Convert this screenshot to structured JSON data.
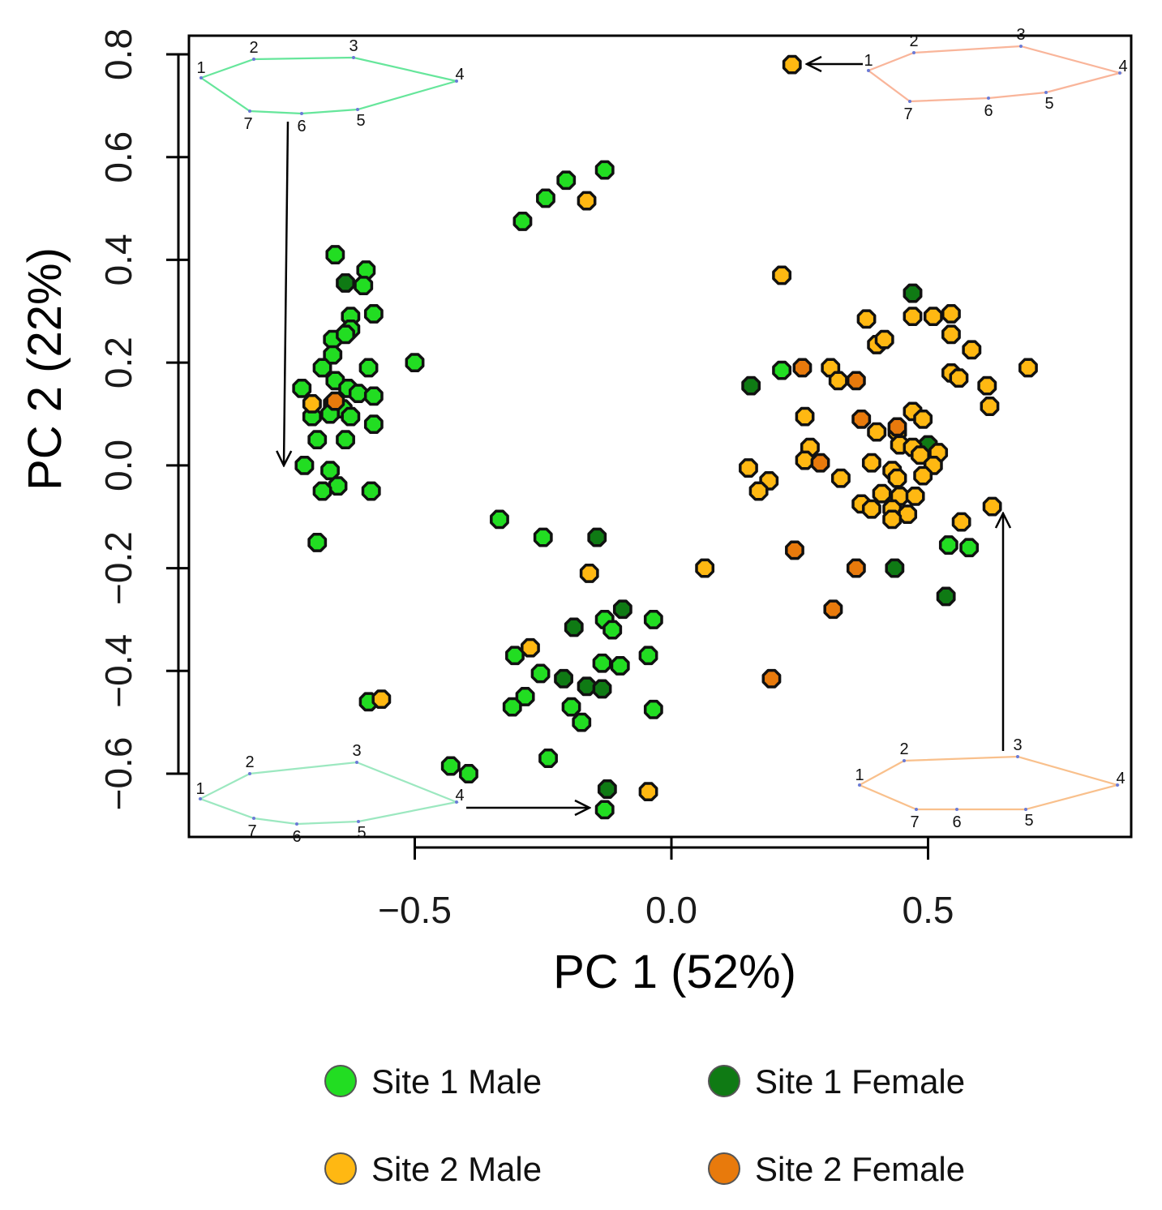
{
  "chart_data": {
    "type": "scatter",
    "xlabel": "PC 1 (52%)",
    "ylabel": "PC 2 (22%)",
    "xlim": [
      -0.94,
      0.9
    ],
    "ylim": [
      -0.72,
      0.83
    ],
    "xticks": [
      -0.5,
      0.0,
      0.5
    ],
    "xtick_labels": [
      "−0.5",
      "0.0",
      "0.5"
    ],
    "yticks": [
      -0.6,
      -0.4,
      -0.2,
      0.0,
      0.2,
      0.4,
      0.6,
      0.8
    ],
    "ytick_labels": [
      "−0.6",
      "−0.4",
      "−0.2",
      "0.0",
      "0.2",
      "0.4",
      "0.6",
      "0.8"
    ],
    "grid": false,
    "legend_position": "bottom",
    "series": [
      {
        "name": "Site 1 Male",
        "color": "#22dd22",
        "points": [
          [
            -0.655,
            0.41
          ],
          [
            -0.595,
            0.38
          ],
          [
            -0.6,
            0.35
          ],
          [
            -0.625,
            0.29
          ],
          [
            -0.58,
            0.295
          ],
          [
            -0.66,
            0.245
          ],
          [
            -0.625,
            0.265
          ],
          [
            -0.635,
            0.255
          ],
          [
            -0.66,
            0.215
          ],
          [
            -0.5,
            0.2
          ],
          [
            -0.68,
            0.19
          ],
          [
            -0.59,
            0.19
          ],
          [
            -0.72,
            0.15
          ],
          [
            -0.655,
            0.165
          ],
          [
            -0.63,
            0.15
          ],
          [
            -0.61,
            0.14
          ],
          [
            -0.58,
            0.135
          ],
          [
            -0.66,
            0.12
          ],
          [
            -0.64,
            0.11
          ],
          [
            -0.7,
            0.095
          ],
          [
            -0.665,
            0.1
          ],
          [
            -0.625,
            0.095
          ],
          [
            -0.58,
            0.08
          ],
          [
            -0.69,
            0.05
          ],
          [
            -0.635,
            0.05
          ],
          [
            -0.715,
            0.0
          ],
          [
            -0.665,
            -0.01
          ],
          [
            -0.65,
            -0.04
          ],
          [
            -0.68,
            -0.05
          ],
          [
            -0.585,
            -0.05
          ],
          [
            -0.69,
            -0.15
          ],
          [
            -0.59,
            -0.46
          ],
          [
            -0.43,
            -0.585
          ],
          [
            -0.395,
            -0.6
          ],
          [
            -0.29,
            0.475
          ],
          [
            -0.245,
            0.52
          ],
          [
            -0.205,
            0.555
          ],
          [
            -0.13,
            0.575
          ],
          [
            -0.335,
            -0.105
          ],
          [
            -0.25,
            -0.14
          ],
          [
            -0.13,
            -0.3
          ],
          [
            -0.115,
            -0.32
          ],
          [
            -0.035,
            -0.3
          ],
          [
            -0.305,
            -0.37
          ],
          [
            -0.255,
            -0.405
          ],
          [
            -0.135,
            -0.385
          ],
          [
            -0.1,
            -0.39
          ],
          [
            -0.045,
            -0.37
          ],
          [
            -0.285,
            -0.45
          ],
          [
            -0.31,
            -0.47
          ],
          [
            -0.195,
            -0.47
          ],
          [
            -0.175,
            -0.5
          ],
          [
            -0.035,
            -0.475
          ],
          [
            -0.24,
            -0.57
          ],
          [
            -0.13,
            -0.67
          ],
          [
            0.215,
            0.185
          ],
          [
            0.54,
            -0.155
          ],
          [
            0.58,
            -0.16
          ]
        ]
      },
      {
        "name": "Site 1 Female",
        "color": "#0f7a14",
        "points": [
          [
            -0.635,
            0.355
          ],
          [
            -0.21,
            -0.415
          ],
          [
            -0.19,
            -0.315
          ],
          [
            -0.095,
            -0.28
          ],
          [
            -0.165,
            -0.43
          ],
          [
            -0.135,
            -0.435
          ],
          [
            -0.145,
            -0.14
          ],
          [
            -0.125,
            -0.63
          ],
          [
            0.155,
            0.155
          ],
          [
            0.47,
            0.335
          ],
          [
            0.5,
            0.04
          ],
          [
            0.435,
            -0.2
          ],
          [
            0.535,
            -0.255
          ]
        ]
      },
      {
        "name": "Site 2 Male",
        "color": "#ffb812",
        "points": [
          [
            -0.7,
            0.12
          ],
          [
            -0.565,
            -0.455
          ],
          [
            -0.165,
            0.515
          ],
          [
            -0.16,
            -0.21
          ],
          [
            -0.275,
            -0.355
          ],
          [
            -0.045,
            -0.635
          ],
          [
            0.065,
            -0.2
          ],
          [
            0.235,
            0.78
          ],
          [
            0.215,
            0.37
          ],
          [
            0.38,
            0.285
          ],
          [
            0.47,
            0.29
          ],
          [
            0.51,
            0.29
          ],
          [
            0.545,
            0.295
          ],
          [
            0.4,
            0.235
          ],
          [
            0.415,
            0.245
          ],
          [
            0.545,
            0.255
          ],
          [
            0.585,
            0.225
          ],
          [
            0.31,
            0.19
          ],
          [
            0.325,
            0.165
          ],
          [
            0.695,
            0.19
          ],
          [
            0.545,
            0.18
          ],
          [
            0.56,
            0.17
          ],
          [
            0.615,
            0.155
          ],
          [
            0.62,
            0.115
          ],
          [
            0.26,
            0.095
          ],
          [
            0.47,
            0.105
          ],
          [
            0.49,
            0.09
          ],
          [
            0.4,
            0.065
          ],
          [
            0.44,
            0.065
          ],
          [
            0.445,
            0.04
          ],
          [
            0.47,
            0.035
          ],
          [
            0.485,
            0.02
          ],
          [
            0.52,
            0.025
          ],
          [
            0.27,
            0.035
          ],
          [
            0.26,
            0.01
          ],
          [
            0.39,
            0.005
          ],
          [
            0.43,
            -0.01
          ],
          [
            0.51,
            0.0
          ],
          [
            0.15,
            -0.005
          ],
          [
            0.19,
            -0.03
          ],
          [
            0.33,
            -0.025
          ],
          [
            0.44,
            -0.025
          ],
          [
            0.49,
            -0.02
          ],
          [
            0.17,
            -0.05
          ],
          [
            0.41,
            -0.055
          ],
          [
            0.445,
            -0.06
          ],
          [
            0.475,
            -0.06
          ],
          [
            0.37,
            -0.075
          ],
          [
            0.39,
            -0.085
          ],
          [
            0.43,
            -0.085
          ],
          [
            0.46,
            -0.095
          ],
          [
            0.43,
            -0.105
          ],
          [
            0.565,
            -0.11
          ],
          [
            0.625,
            -0.08
          ]
        ]
      },
      {
        "name": "Site 2 Female",
        "color": "#e87a0c",
        "points": [
          [
            -0.655,
            0.125
          ],
          [
            0.255,
            0.19
          ],
          [
            0.36,
            0.165
          ],
          [
            0.37,
            0.09
          ],
          [
            0.44,
            0.075
          ],
          [
            0.29,
            0.005
          ],
          [
            0.24,
            -0.165
          ],
          [
            0.36,
            -0.2
          ],
          [
            0.315,
            -0.28
          ],
          [
            0.195,
            -0.415
          ]
        ]
      }
    ],
    "shape_insets": [
      {
        "name": "top-left shape",
        "color": "#66e69b",
        "labels": [
          "1",
          "2",
          "3",
          "4",
          "5",
          "6",
          "7"
        ],
        "arrow": "down"
      },
      {
        "name": "top-right shape",
        "color": "#f9b59a",
        "labels": [
          "1",
          "2",
          "3",
          "4",
          "5",
          "6",
          "7"
        ],
        "arrow": "left"
      },
      {
        "name": "bottom-left shape",
        "color": "#9ce8c0",
        "labels": [
          "1",
          "2",
          "3",
          "4",
          "5",
          "6",
          "7"
        ],
        "arrow": "right"
      },
      {
        "name": "bottom-right shape",
        "color": "#f9c08c",
        "labels": [
          "1",
          "2",
          "3",
          "4",
          "5",
          "6",
          "7"
        ],
        "arrow": "up"
      }
    ]
  }
}
